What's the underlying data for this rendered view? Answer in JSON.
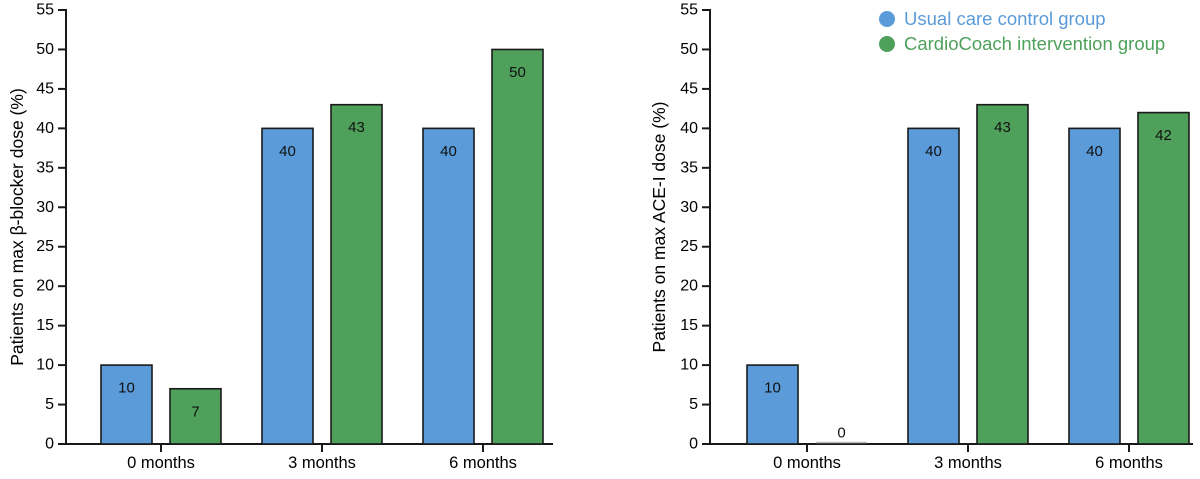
{
  "colors": {
    "control": "#5B9BD9",
    "intervention": "#4FA05A",
    "bar_border": "#1a1a1a",
    "axis": "#1a1a1a",
    "value_label": "#111111",
    "zero_bar_line": "#bbbbbb",
    "background": "#ffffff"
  },
  "legend": {
    "items": [
      {
        "label": "Usual care control group",
        "color": "#5B9BD9"
      },
      {
        "label": "CardioCoach intervention group",
        "color": "#4FA05A"
      }
    ],
    "position": "top-right"
  },
  "chart_data": [
    {
      "type": "bar",
      "title": "",
      "xlabel": "",
      "ylabel": "Patients on max β-blocker dose (%)",
      "categories": [
        "0 months",
        "3 months",
        "6 months"
      ],
      "series": [
        {
          "name": "Usual care control group",
          "color": "#5B9BD9",
          "values": [
            10,
            40,
            40
          ]
        },
        {
          "name": "CardioCoach intervention group",
          "color": "#4FA05A",
          "values": [
            7,
            43,
            50
          ]
        }
      ],
      "ylim": [
        0,
        55
      ],
      "ytick_step": 5,
      "grid": false,
      "value_labels": true
    },
    {
      "type": "bar",
      "title": "",
      "xlabel": "",
      "ylabel": "Patients on max ACE-I dose (%)",
      "categories": [
        "0 months",
        "3 months",
        "6 months"
      ],
      "series": [
        {
          "name": "Usual care control group",
          "color": "#5B9BD9",
          "values": [
            10,
            40,
            40
          ]
        },
        {
          "name": "CardioCoach intervention group",
          "color": "#4FA05A",
          "values": [
            0,
            43,
            42
          ]
        }
      ],
      "ylim": [
        0,
        55
      ],
      "ytick_step": 5,
      "grid": false,
      "value_labels": true
    }
  ]
}
